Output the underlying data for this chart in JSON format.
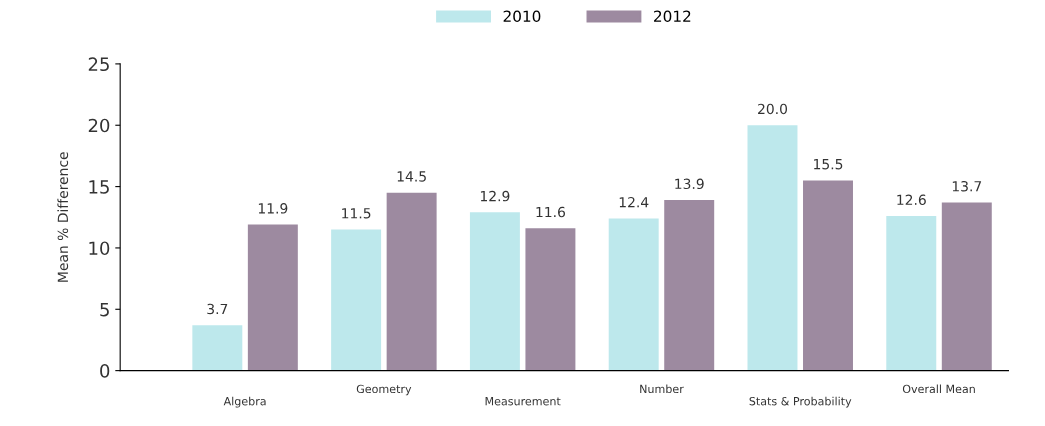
{
  "chart_data": {
    "type": "bar",
    "ylabel": "Mean % Difference",
    "categories": [
      "Algebra",
      "Geometry",
      "Measurement",
      "Number",
      "Stats & Probability",
      "Overall Mean"
    ],
    "series": [
      {
        "name": "2010",
        "color": "#bde8ec",
        "values": [
          3.7,
          11.5,
          12.9,
          12.4,
          20.0,
          12.6
        ],
        "value_labels": [
          "3.7",
          "11.5",
          "12.9",
          "12.4",
          "20.0",
          "12.6"
        ]
      },
      {
        "name": "2012",
        "color": "#9d8aa0",
        "values": [
          11.9,
          14.5,
          11.6,
          13.9,
          15.5,
          13.7
        ],
        "value_labels": [
          "11.9",
          "14.5",
          "11.6",
          "13.9",
          "15.5",
          "13.7"
        ]
      }
    ],
    "ylim": [
      0,
      25
    ],
    "yticks": [
      0,
      5,
      10,
      15,
      20,
      25
    ],
    "grid": false,
    "legend": "top"
  }
}
